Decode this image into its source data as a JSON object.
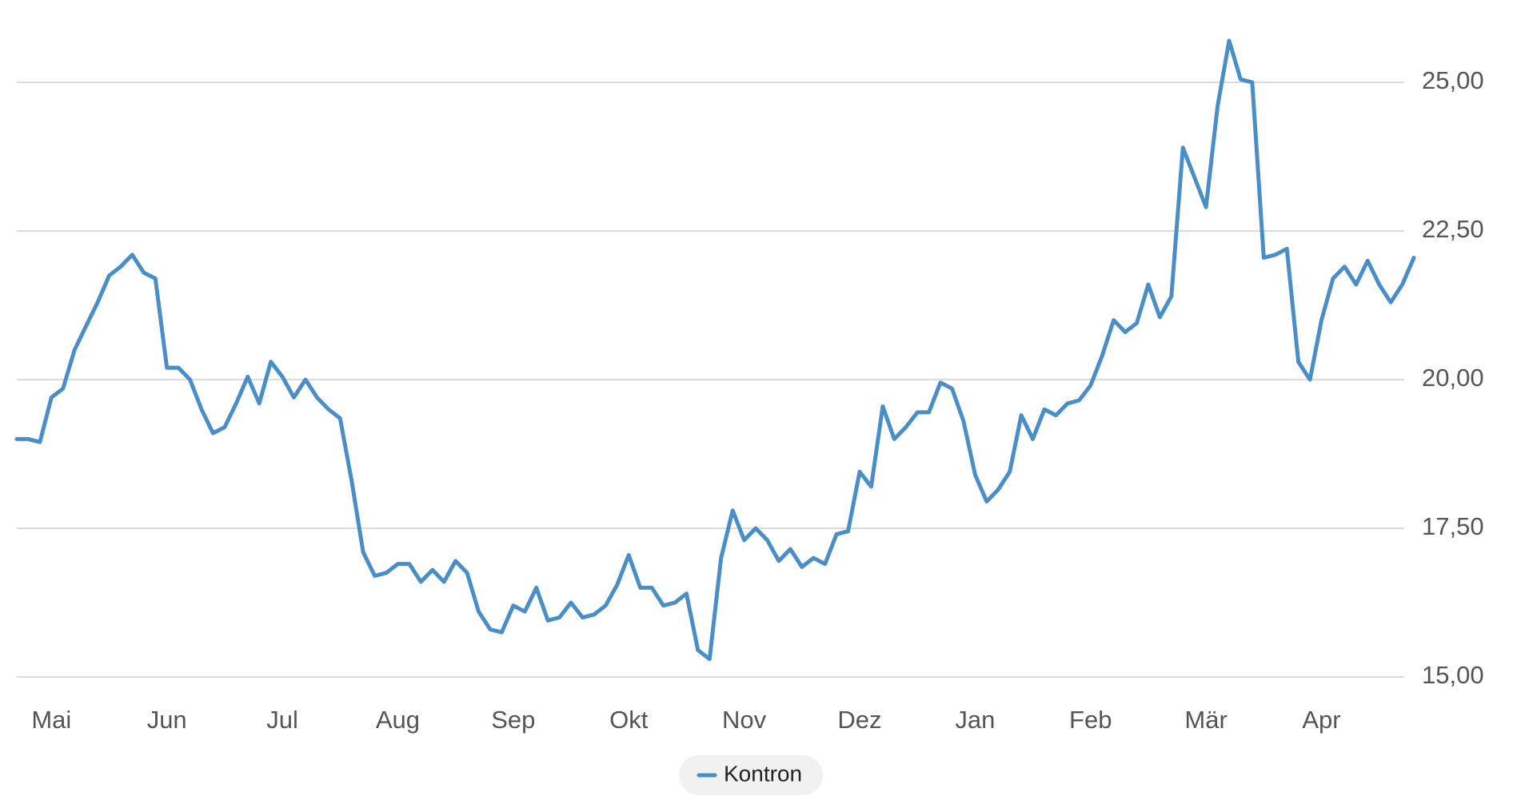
{
  "chart_data": {
    "type": "line",
    "series": [
      {
        "name": "Kontron",
        "color": "#4a8ec8",
        "values": [
          19.0,
          19.0,
          18.95,
          19.7,
          19.85,
          20.5,
          20.9,
          21.3,
          21.75,
          21.9,
          22.1,
          21.8,
          21.7,
          20.2,
          20.2,
          20.0,
          19.5,
          19.1,
          19.2,
          19.6,
          20.05,
          19.6,
          20.3,
          20.05,
          19.7,
          20.0,
          19.7,
          19.5,
          19.35,
          18.3,
          17.1,
          16.7,
          16.75,
          16.9,
          16.9,
          16.6,
          16.8,
          16.6,
          16.95,
          16.75,
          16.1,
          15.8,
          15.75,
          16.2,
          16.1,
          16.5,
          15.95,
          16.0,
          16.25,
          16.0,
          16.05,
          16.2,
          16.55,
          17.05,
          16.5,
          16.5,
          16.2,
          16.25,
          16.4,
          15.45,
          15.3,
          17.0,
          17.8,
          17.3,
          17.5,
          17.3,
          16.95,
          17.15,
          16.85,
          17.0,
          16.9,
          17.4,
          17.45,
          18.45,
          18.2,
          19.55,
          19.0,
          19.2,
          19.45,
          19.45,
          19.95,
          19.85,
          19.3,
          18.4,
          17.95,
          18.15,
          18.45,
          19.4,
          19.0,
          19.5,
          19.4,
          19.6,
          19.65,
          19.9,
          20.4,
          21.0,
          20.8,
          20.95,
          21.6,
          21.05,
          21.4,
          23.9,
          23.4,
          22.9,
          24.6,
          25.7,
          25.05,
          25.0,
          22.05,
          22.1,
          22.2,
          20.3,
          20.0,
          21.0,
          21.7,
          21.9,
          21.6,
          22.0,
          21.6,
          21.3,
          21.6,
          22.05
        ]
      }
    ],
    "xlim": [
      0,
      121
    ],
    "xticks": [
      {
        "value": 3,
        "label": "Mai"
      },
      {
        "value": 13,
        "label": "Jun"
      },
      {
        "value": 23,
        "label": "Jul"
      },
      {
        "value": 33,
        "label": "Aug"
      },
      {
        "value": 43,
        "label": "Sep"
      },
      {
        "value": 53,
        "label": "Okt"
      },
      {
        "value": 63,
        "label": "Nov"
      },
      {
        "value": 73,
        "label": "Dez"
      },
      {
        "value": 83,
        "label": "Jan"
      },
      {
        "value": 93,
        "label": "Feb"
      },
      {
        "value": 103,
        "label": "Mär"
      },
      {
        "value": 113,
        "label": "Apr"
      }
    ],
    "ylim": [
      15,
      25
    ],
    "yticks": [
      {
        "value": 15,
        "label": "15,00"
      },
      {
        "value": 17.5,
        "label": "17,50"
      },
      {
        "value": 20,
        "label": "20,00"
      },
      {
        "value": 22.5,
        "label": "22,50"
      },
      {
        "value": 25,
        "label": "25,00"
      }
    ],
    "grid": true,
    "legend": "bottom"
  }
}
